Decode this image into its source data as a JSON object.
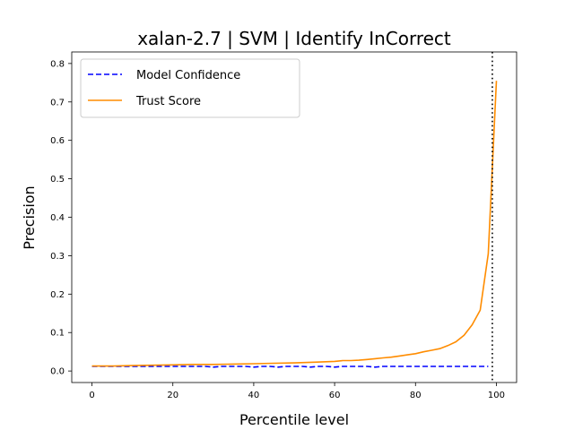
{
  "chart_data": {
    "type": "line",
    "title": "xalan-2.7 | SVM | Identify InCorrect",
    "xlabel": "Percentile level",
    "ylabel": "Precision",
    "xlim": [
      -5,
      105
    ],
    "ylim": [
      -0.03,
      0.83
    ],
    "xticks": [
      0,
      20,
      40,
      60,
      80,
      100
    ],
    "yticks": [
      0.0,
      0.1,
      0.2,
      0.3,
      0.4,
      0.5,
      0.6,
      0.7,
      0.8
    ],
    "xtick_labels": [
      "0",
      "20",
      "40",
      "60",
      "80",
      "100"
    ],
    "ytick_labels": [
      "0.0",
      "0.1",
      "0.2",
      "0.3",
      "0.4",
      "0.5",
      "0.6",
      "0.7",
      "0.8"
    ],
    "grid": false,
    "legend_position": "upper-left",
    "vline": {
      "x": 99,
      "style": "dotted",
      "color": "#000000"
    },
    "series": [
      {
        "name": "Model Confidence",
        "color": "#0000ff",
        "style": "dashed",
        "x": [
          0,
          2,
          4,
          6,
          8,
          10,
          12,
          14,
          16,
          18,
          20,
          22,
          24,
          26,
          28,
          30,
          32,
          34,
          36,
          38,
          40,
          42,
          44,
          46,
          48,
          50,
          52,
          54,
          56,
          58,
          60,
          62,
          64,
          66,
          68,
          70,
          72,
          74,
          76,
          78,
          80,
          82,
          84,
          86,
          88,
          90,
          92,
          94,
          96,
          98
        ],
        "y": [
          0.012,
          0.012,
          0.012,
          0.012,
          0.012,
          0.012,
          0.012,
          0.012,
          0.012,
          0.012,
          0.012,
          0.012,
          0.012,
          0.012,
          0.012,
          0.01,
          0.012,
          0.012,
          0.012,
          0.012,
          0.01,
          0.012,
          0.012,
          0.01,
          0.012,
          0.012,
          0.012,
          0.01,
          0.012,
          0.012,
          0.01,
          0.012,
          0.012,
          0.012,
          0.012,
          0.01,
          0.012,
          0.012,
          0.012,
          0.012,
          0.012,
          0.012,
          0.012,
          0.012,
          0.012,
          0.012,
          0.012,
          0.012,
          0.012,
          0.012
        ]
      },
      {
        "name": "Trust Score",
        "color": "#ff8c00",
        "style": "solid",
        "x": [
          0,
          5,
          10,
          15,
          20,
          25,
          30,
          35,
          40,
          45,
          50,
          55,
          60,
          62,
          64,
          66,
          68,
          70,
          72,
          74,
          76,
          78,
          80,
          82,
          84,
          86,
          88,
          90,
          92,
          94,
          96,
          98,
          100
        ],
        "y": [
          0.013,
          0.013,
          0.014,
          0.015,
          0.016,
          0.017,
          0.017,
          0.018,
          0.019,
          0.02,
          0.021,
          0.023,
          0.025,
          0.027,
          0.027,
          0.028,
          0.03,
          0.032,
          0.034,
          0.036,
          0.039,
          0.042,
          0.045,
          0.05,
          0.054,
          0.058,
          0.066,
          0.076,
          0.093,
          0.12,
          0.158,
          0.305,
          0.755
        ]
      }
    ]
  }
}
